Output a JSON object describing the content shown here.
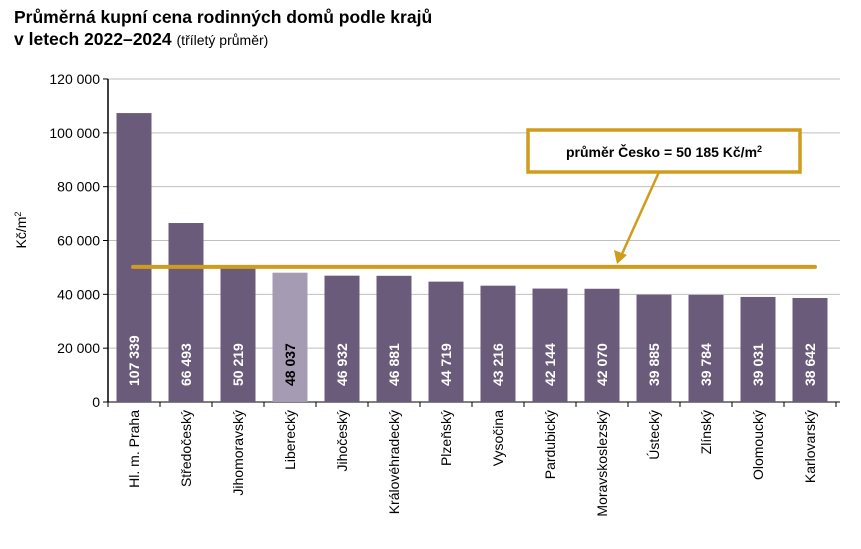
{
  "chart_data": {
    "type": "bar",
    "title_line1": "Průměrná kupní cena rodinných domů podle krajů",
    "title_line2": "v letech 2022–2024",
    "subtitle": "(tříletý průměr)",
    "ylabel": "Kč/m",
    "ylabel_sup": "2",
    "ylim": [
      0,
      120000
    ],
    "yticks": [
      "0",
      "20 000",
      "40 000",
      "60 000",
      "80 000",
      "100 000",
      "120 000"
    ],
    "grid": true,
    "categories": [
      "Hl. m. Praha",
      "Středočeský",
      "Jihomoravský",
      "Liberecký",
      "Jihočeský",
      "Královéhradecký",
      "Plzeňský",
      "Vysočina",
      "Pardubický",
      "Moravskoslezský",
      "Ústecký",
      "Zlínský",
      "Olomoucký",
      "Karlovarský"
    ],
    "values": [
      107339,
      66493,
      50219,
      48037,
      46932,
      46881,
      44719,
      43216,
      42144,
      42070,
      39885,
      39784,
      39031,
      38642
    ],
    "data_labels": [
      "107 339",
      "66 493",
      "50 219",
      "48 037",
      "46 932",
      "46 881",
      "44 719",
      "43 216",
      "42 144",
      "42 070",
      "39 885",
      "39 784",
      "39 031",
      "38 642"
    ],
    "highlight_index": 3,
    "reference_line": {
      "value": 50185,
      "label": "průměr Česko = 50 185 Kč/m",
      "label_sup": "2"
    },
    "colors": {
      "bar": "#6b5b7b",
      "highlight": "#a59cb3",
      "reference": "#d09c1c",
      "grid": "#bfbfbf"
    }
  }
}
